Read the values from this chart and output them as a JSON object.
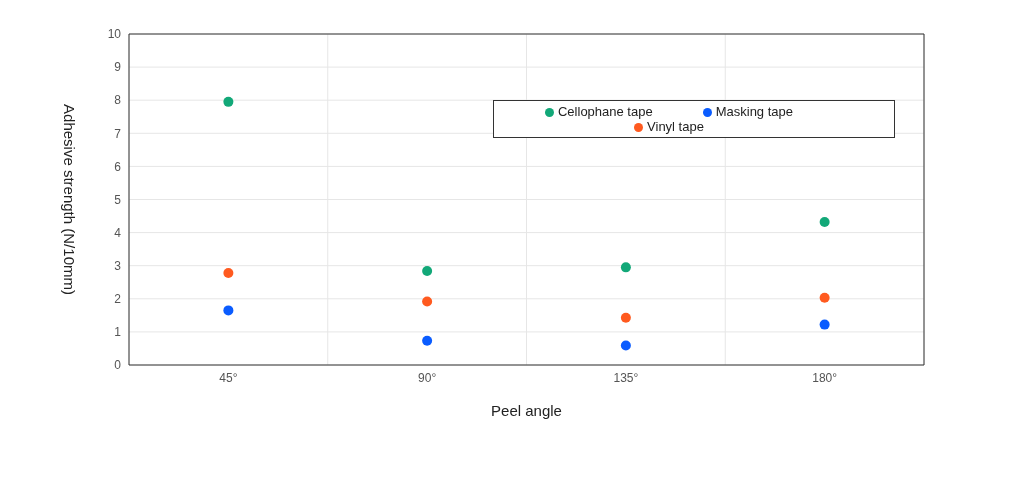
{
  "chart_data": {
    "type": "scatter",
    "xlabel": "Peel angle",
    "ylabel": "Adhesive strength (N/10mm)",
    "categories": [
      "45°",
      "90°",
      "135°",
      "180°"
    ],
    "series": [
      {
        "name": "Masking tape",
        "color": "#0a5cff",
        "values": [
          1.65,
          0.73,
          0.59,
          1.22
        ]
      },
      {
        "name": "Vinyl tape",
        "color": "#ff5a1f",
        "values": [
          2.78,
          1.92,
          1.43,
          2.03
        ]
      },
      {
        "name": "Cellophane tape",
        "color": "#12a878",
        "values": [
          7.95,
          2.84,
          2.95,
          4.32
        ]
      }
    ],
    "ylim": [
      0,
      10
    ],
    "yticks": [
      0,
      1,
      2,
      3,
      4,
      5,
      6,
      7,
      8,
      9,
      10
    ],
    "grid": true,
    "legend": "top right",
    "marker": "circle"
  }
}
